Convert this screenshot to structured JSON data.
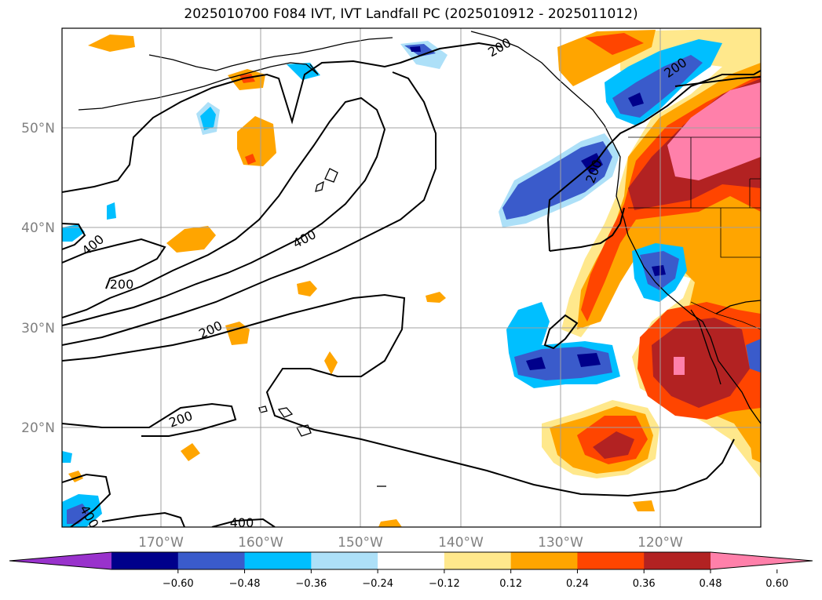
{
  "title": "2025010700 F084 IVT, IVT Landfall PC (2025010912 - 2025011012)",
  "map": {
    "lat_labels": [
      "50°N",
      "40°N",
      "30°N",
      "20°N"
    ],
    "lon_labels": [
      "170°W",
      "160°W",
      "150°W",
      "140°W",
      "130°W",
      "120°W"
    ],
    "contour_labels": [
      "200",
      "400",
      "200",
      "400",
      "200",
      "200",
      "400",
      "400",
      "200",
      "200"
    ]
  },
  "colorbar": {
    "colors": [
      "#9932CC",
      "#00008B",
      "#3A5BCB",
      "#00BFFF",
      "#ADE0F8",
      "#FFFFFF",
      "#FFE88C",
      "#FFA500",
      "#FF4500",
      "#B22222",
      "#FF80AA"
    ],
    "ticks": [
      "−0.60",
      "−0.48",
      "−0.36",
      "−0.24",
      "−0.12",
      "0.12",
      "0.24",
      "0.36",
      "0.48",
      "0.60"
    ]
  }
}
